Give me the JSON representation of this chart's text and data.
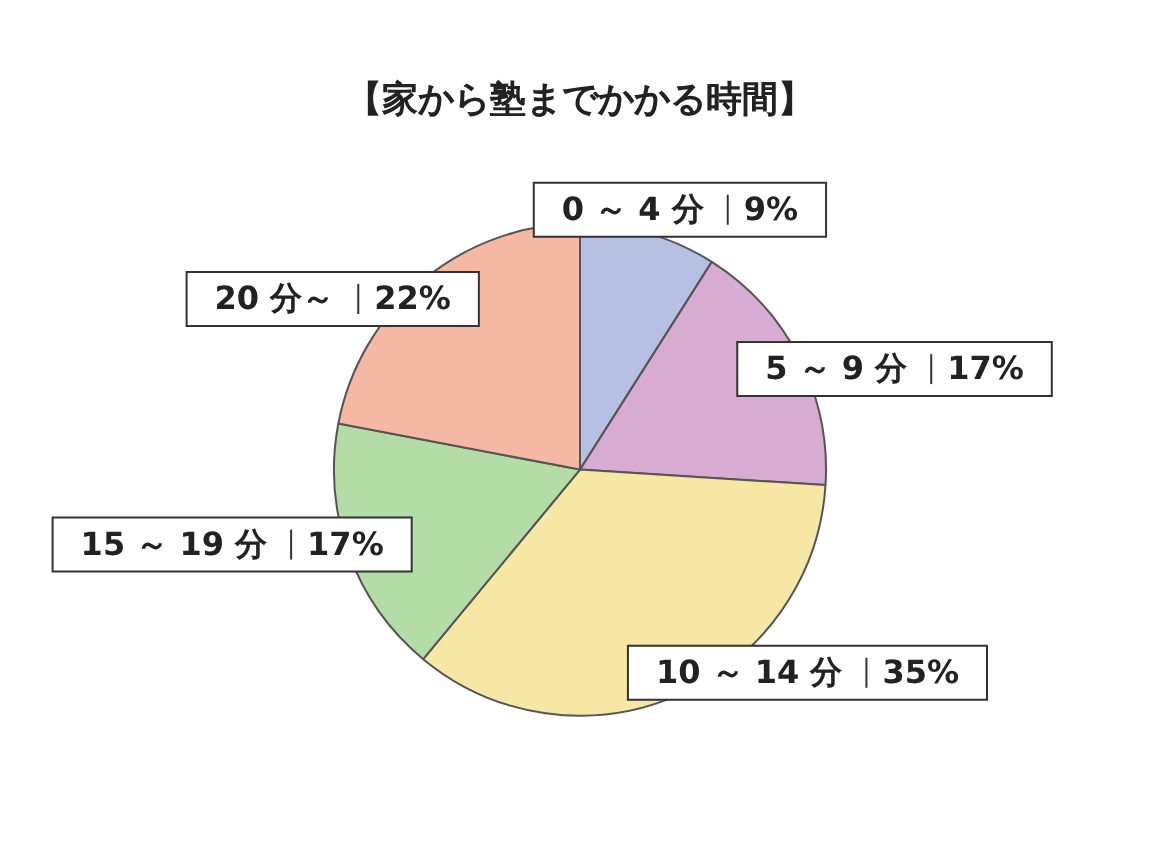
{
  "chart_data": {
    "type": "pie",
    "title": "【家から塾までかかる時間】",
    "categories": [
      "0 ～ 4 分",
      "5 ～ 9 分",
      "10 ～ 14 分",
      "15 ～ 19 分",
      "20 分～"
    ],
    "values": [
      9,
      17,
      35,
      17,
      22
    ],
    "value_labels": [
      "9%",
      "17%",
      "35%",
      "17%",
      "22%"
    ],
    "colors": [
      "#b7bfe3",
      "#d8acd2",
      "#f6e8a4",
      "#b4dca6",
      "#f4b8a4"
    ],
    "legend": false
  }
}
